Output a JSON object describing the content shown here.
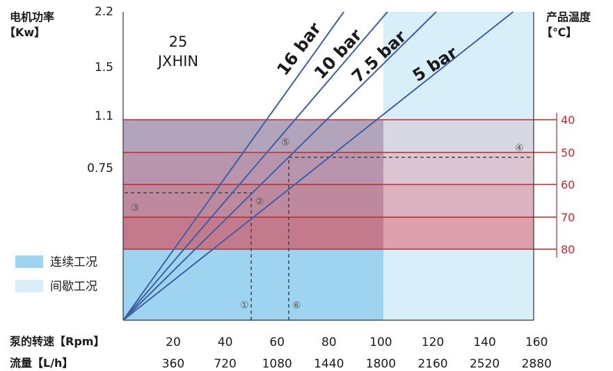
{
  "chart_data": {
    "type": "line",
    "title": "25",
    "subtitle": "JXHIN",
    "y_left_label_line1": "电机功率",
    "y_left_label_line2": "【Kw】",
    "y_right_label_line1": "产品温度",
    "y_right_label_line2": "【℃】",
    "x_speed_label": "泵的转速【Rpm】",
    "x_flow_label": "流量【L/h】",
    "speed_ticks": [
      "20",
      "40",
      "60",
      "80",
      "100",
      "120",
      "140",
      "160"
    ],
    "flow_ticks": [
      "360",
      "720",
      "1080",
      "1440",
      "1800",
      "2160",
      "2520",
      "2880"
    ],
    "power_ticks": [
      "2.2",
      "1.5",
      "1.1",
      "0.75"
    ],
    "temp_ticks": [
      "40",
      "50",
      "60",
      "70",
      "80"
    ],
    "xlim": [
      0,
      160
    ],
    "continuous_speed_max": 100,
    "series": [
      {
        "name": "16 bar",
        "points": [
          [
            0,
            0
          ],
          [
            86,
            2.2
          ]
        ]
      },
      {
        "name": "10 bar",
        "points": [
          [
            0,
            0
          ],
          [
            103,
            2.2
          ]
        ]
      },
      {
        "name": "7.5 bar",
        "points": [
          [
            0,
            0
          ],
          [
            122,
            2.2
          ]
        ]
      },
      {
        "name": "5 bar",
        "points": [
          [
            0,
            0
          ],
          [
            152,
            2.2
          ]
        ]
      }
    ],
    "markers": [
      "①",
      "②",
      "③",
      "④",
      "⑤",
      "⑥"
    ],
    "legend": [
      {
        "label": "连续工况",
        "color": "#9ed4f0"
      },
      {
        "label": "间歇工况",
        "color": "#d8eef8"
      }
    ],
    "colors": {
      "continuous": "#9ed4f0",
      "intermittent": "#d8eef8",
      "line": "#3d5fa8",
      "temp": "#c0282c"
    }
  }
}
